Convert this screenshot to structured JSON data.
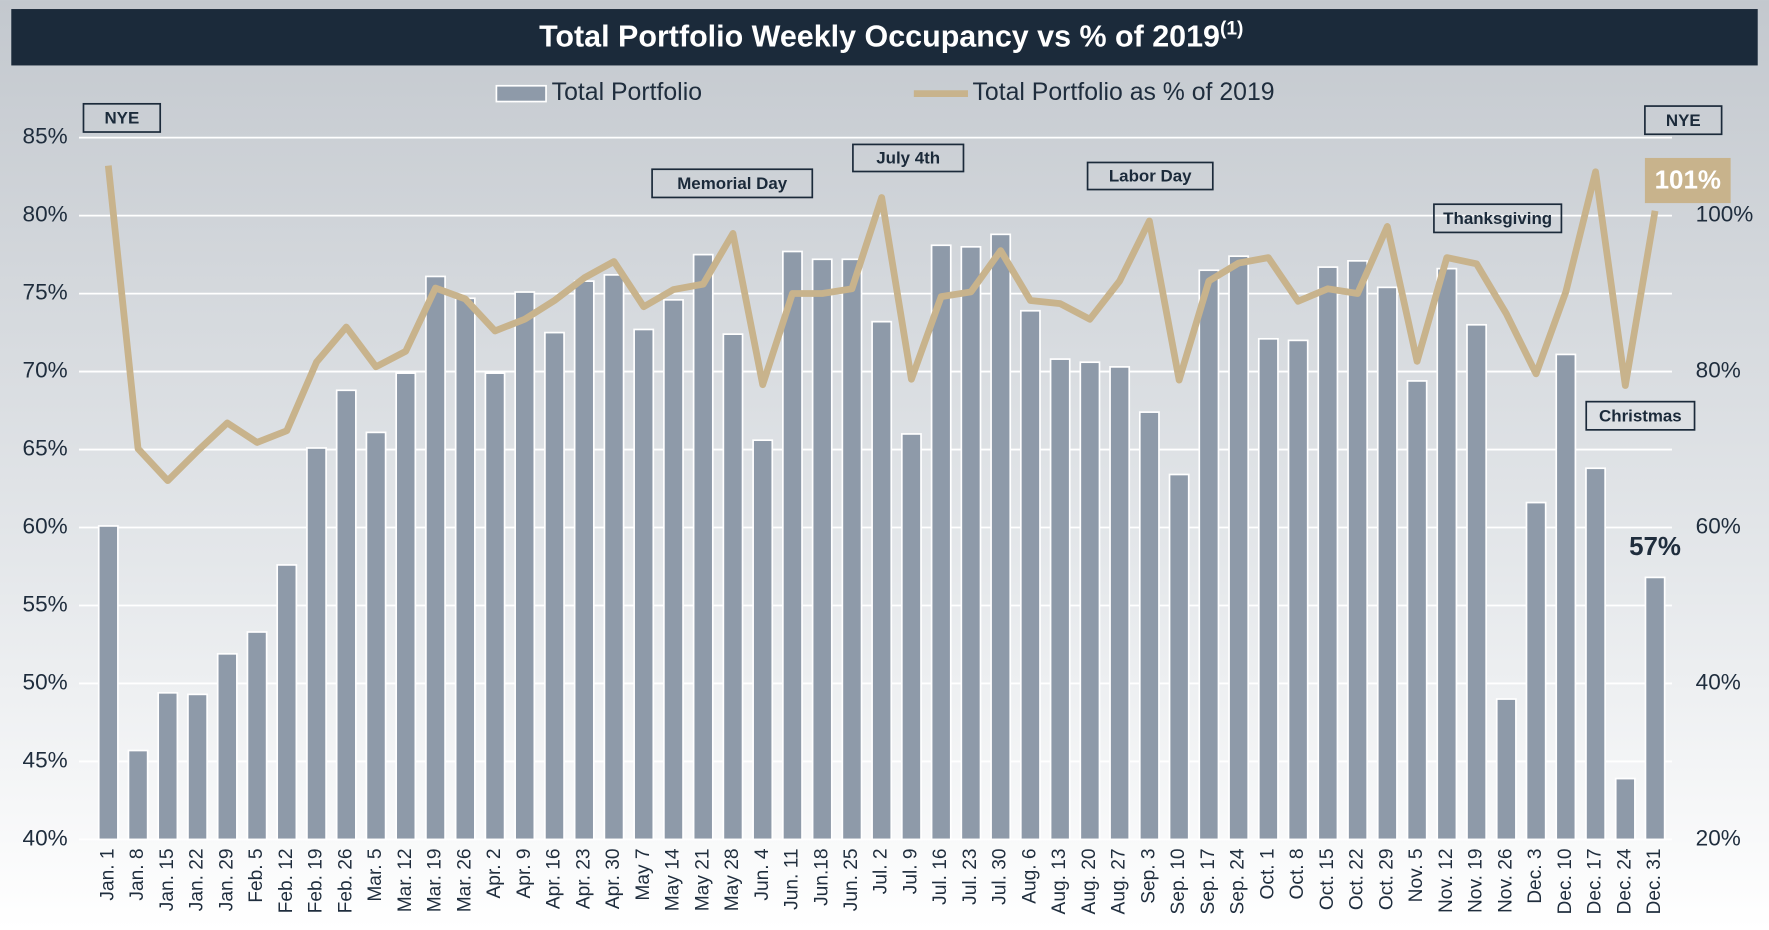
{
  "chart_data": {
    "type": "bar",
    "title": "Total Portfolio Weekly Occupancy vs % of 2019",
    "title_note": "(1)",
    "categories": [
      "Jan. 1",
      "Jan. 8",
      "Jan. 15",
      "Jan. 22",
      "Jan. 29",
      "Feb. 5",
      "Feb. 12",
      "Feb. 19",
      "Feb. 26",
      "Mar. 5",
      "Mar. 12",
      "Mar. 19",
      "Mar. 26",
      "Apr. 2",
      "Apr. 9",
      "Apr. 16",
      "Apr. 23",
      "Apr. 30",
      "May 7",
      "May 14",
      "May 21",
      "May 28",
      "Jun. 4",
      "Jun. 11",
      "Jun.18",
      "Jun. 25",
      "Jul. 2",
      "Jul. 9",
      "Jul. 16",
      "Jul. 23",
      "Jul. 30",
      "Aug. 6",
      "Aug. 13",
      "Aug. 20",
      "Aug. 27",
      "Sep. 3",
      "Sep. 10",
      "Sep. 17",
      "Sep. 24",
      "Oct. 1",
      "Oct. 8",
      "Oct. 15",
      "Oct. 22",
      "Oct. 29",
      "Nov. 5",
      "Nov. 12",
      "Nov. 19",
      "Nov. 26",
      "Dec. 3",
      "Dec. 10",
      "Dec. 17",
      "Dec. 24",
      "Dec. 31"
    ],
    "series": [
      {
        "name": "Total Portfolio",
        "type": "bar",
        "color": "#8e9aa9",
        "values": [
          60.1,
          45.7,
          49.4,
          49.3,
          51.9,
          53.3,
          57.6,
          65.1,
          68.8,
          66.1,
          69.9,
          76.1,
          74.7,
          69.9,
          75.1,
          72.5,
          75.8,
          76.2,
          72.7,
          74.6,
          77.5,
          72.4,
          65.6,
          77.7,
          77.2,
          77.2,
          73.2,
          66.0,
          78.1,
          78.0,
          78.8,
          73.9,
          70.8,
          70.6,
          70.3,
          67.4,
          63.4,
          76.5,
          77.4,
          72.1,
          72.0,
          76.7,
          77.1,
          75.4,
          69.4,
          76.6,
          73.0,
          49.0,
          61.6,
          71.1,
          63.8,
          43.9,
          56.8
        ],
        "value_labels": [
          null,
          null,
          null,
          null,
          null,
          null,
          null,
          null,
          null,
          null,
          null,
          null,
          null,
          null,
          null,
          null,
          null,
          null,
          null,
          null,
          null,
          null,
          null,
          null,
          null,
          null,
          null,
          null,
          null,
          null,
          null,
          null,
          null,
          null,
          null,
          null,
          null,
          null,
          null,
          null,
          null,
          null,
          null,
          null,
          null,
          null,
          null,
          null,
          null,
          null,
          null,
          null,
          "57%"
        ]
      },
      {
        "name": "Total Portfolio as % of 2019",
        "type": "line",
        "color": "#c8b38c",
        "axis": "y2",
        "values": [
          106.4,
          70.1,
          66.0,
          69.8,
          73.4,
          70.9,
          72.4,
          81.2,
          85.7,
          80.6,
          82.6,
          90.7,
          89.3,
          85.2,
          86.7,
          89.1,
          92.0,
          94.1,
          88.3,
          90.5,
          91.2,
          97.7,
          78.3,
          90.0,
          90.0,
          90.6,
          102.3,
          79.0,
          89.6,
          90.2,
          95.5,
          89.1,
          88.7,
          86.7,
          91.6,
          99.3,
          78.9,
          91.6,
          93.9,
          94.6,
          89.0,
          90.6,
          90.0,
          98.6,
          81.3,
          94.6,
          93.8,
          87.4,
          79.7,
          90.2,
          105.6,
          78.2,
          100.6
        ],
        "value_labels": [
          null,
          null,
          null,
          null,
          null,
          null,
          null,
          null,
          null,
          null,
          null,
          null,
          null,
          null,
          null,
          null,
          null,
          null,
          null,
          null,
          null,
          null,
          null,
          null,
          null,
          null,
          null,
          null,
          null,
          null,
          null,
          null,
          null,
          null,
          null,
          null,
          null,
          null,
          null,
          null,
          null,
          null,
          null,
          null,
          null,
          null,
          null,
          null,
          null,
          null,
          null,
          null,
          "101%"
        ]
      }
    ],
    "ylim": [
      40,
      85
    ],
    "yticks": [
      {
        "value": 40,
        "label": "40%"
      },
      {
        "value": 45,
        "label": "45%"
      },
      {
        "value": 50,
        "label": "50%"
      },
      {
        "value": 55,
        "label": "55%"
      },
      {
        "value": 60,
        "label": "60%"
      },
      {
        "value": 65,
        "label": "65%"
      },
      {
        "value": 70,
        "label": "70%"
      },
      {
        "value": 75,
        "label": "75%"
      },
      {
        "value": 80,
        "label": "80%"
      },
      {
        "value": 85,
        "label": "85%"
      }
    ],
    "y2lim": [
      20,
      120
    ],
    "y2ticks": [
      {
        "value": 20,
        "label": "20%"
      },
      {
        "value": 40,
        "label": "40%"
      },
      {
        "value": 60,
        "label": "60%"
      },
      {
        "value": 80,
        "label": "80%"
      },
      {
        "value": 100,
        "label": "100%"
      }
    ],
    "grid": true,
    "legend": "top",
    "annotations": [
      {
        "text": "NYE"
      },
      {
        "text": "NYE"
      },
      {
        "text": "Memorial Day"
      },
      {
        "text": "July 4th"
      },
      {
        "text": "Labor Day"
      },
      {
        "text": "Thanksgiving"
      },
      {
        "text": "Christmas"
      }
    ]
  }
}
